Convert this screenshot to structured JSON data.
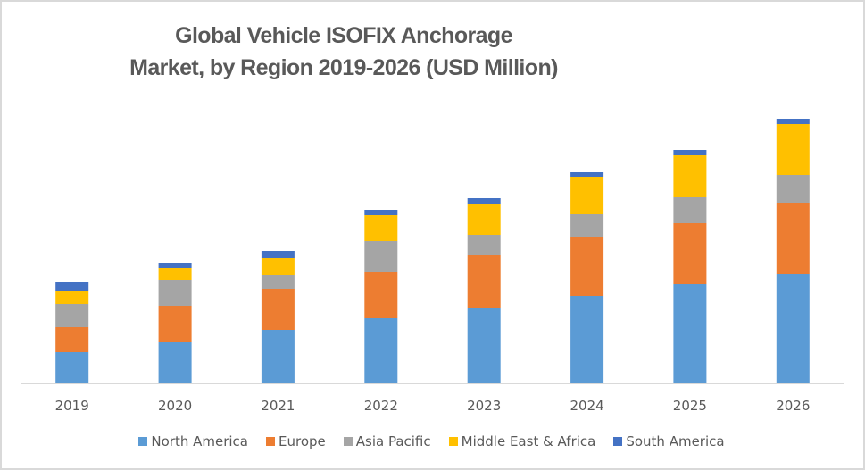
{
  "chart_data": {
    "type": "bar",
    "stacked": true,
    "title": "Global Vehicle ISOFIX Anchorage Market, by Region 2019-2026 (USD Million)",
    "title_lines": [
      "Global Vehicle ISOFIX Anchorage",
      "Market, by Region 2019-2026 (USD Million)"
    ],
    "xlabel": "",
    "ylabel": "",
    "y_axis_visible": false,
    "ylim": [
      0,
      330
    ],
    "value_units": "relative (no value axis shown)",
    "grid": false,
    "legend_position": "bottom",
    "categories": [
      "2019",
      "2020",
      "2021",
      "2022",
      "2023",
      "2024",
      "2025",
      "2026"
    ],
    "series": [
      {
        "name": "North America",
        "color": "#5b9bd5",
        "values": [
          35,
          47,
          60,
          73,
          85,
          98,
          111,
          123
        ]
      },
      {
        "name": "Europe",
        "color": "#ed7d31",
        "values": [
          28,
          40,
          46,
          52,
          59,
          66,
          69,
          79
        ]
      },
      {
        "name": "Asia Pacific",
        "color": "#a5a5a5",
        "values": [
          26,
          29,
          16,
          35,
          22,
          26,
          29,
          32
        ]
      },
      {
        "name": "Middle East & Africa",
        "color": "#ffc000",
        "values": [
          15,
          14,
          19,
          29,
          35,
          41,
          47,
          57
        ]
      },
      {
        "name": "South America",
        "color": "#4472c4",
        "values": [
          10,
          5,
          7,
          6,
          7,
          6,
          6,
          6
        ]
      }
    ]
  }
}
